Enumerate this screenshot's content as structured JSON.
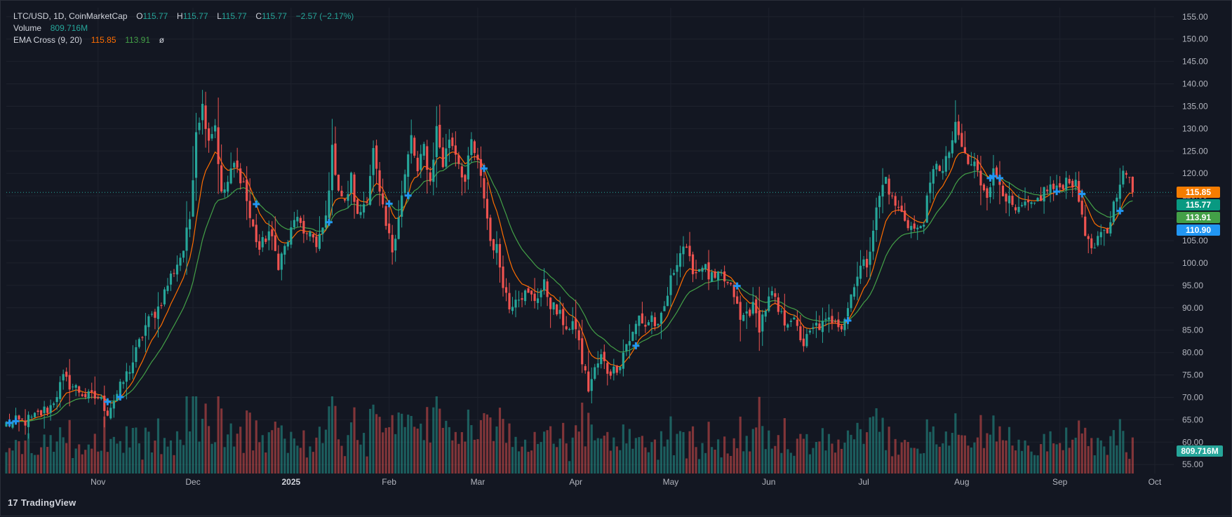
{
  "legend": {
    "symbol_line": "LTC/USD, 1D, CoinMarketCap",
    "o_key": "O",
    "o_val": "115.77",
    "h_key": "H",
    "h_val": "115.77",
    "l_key": "L",
    "l_val": "115.77",
    "c_key": "C",
    "c_val": "115.77",
    "change": "−2.57 (−2.17%)",
    "volume_label": "Volume",
    "volume_val": "809.716M",
    "ema_label": "EMA Cross (9, 20)",
    "ema9_val": "115.85",
    "ema20_val": "113.91",
    "ema_extra": "ø"
  },
  "price_tags": [
    {
      "label": "115.85",
      "value": 115.85,
      "color": "#f57c00"
    },
    {
      "label": "115.77",
      "value": 115.77,
      "color": "#089981"
    },
    {
      "label": "113.91",
      "value": 113.91,
      "color": "#43a047"
    },
    {
      "label": "110.90",
      "value": 110.9,
      "color": "#2196f3"
    }
  ],
  "volume_tag": {
    "label": "809.716M",
    "color": "#26a69a"
  },
  "branding": {
    "logo_mark": "17",
    "logo_text": "TradingView"
  },
  "colors": {
    "up": "#26a69a",
    "down": "#ef5350",
    "ema9": "#ff6d00",
    "ema20": "#43a047",
    "cross": "#2196f3",
    "last_price_line": "#26a69a"
  },
  "chart_data": {
    "type": "candlestick",
    "symbol": "LTC/USD",
    "interval": "1D",
    "ylim": [
      53,
      157
    ],
    "yticks": [
      55,
      60,
      65,
      70,
      75,
      80,
      85,
      90,
      95,
      100,
      105,
      110,
      115,
      120,
      125,
      130,
      135,
      140,
      145,
      150,
      155
    ],
    "ytick_labels": [
      "55.00",
      "60.00",
      "65.00",
      "70.00",
      "75.00",
      "80.00",
      "85.00",
      "90.00",
      "95.00",
      "100.00",
      "105.00",
      "110.00",
      "115.00",
      "120.00",
      "125.00",
      "130.00",
      "135.00",
      "140.00",
      "145.00",
      "150.00",
      "155.00"
    ],
    "x_range_days": [
      0,
      369
    ],
    "xticks": [
      {
        "label": "Nov",
        "day": 29,
        "bold": false
      },
      {
        "label": "Dec",
        "day": 59,
        "bold": false
      },
      {
        "label": "2025",
        "day": 90,
        "bold": true
      },
      {
        "label": "Feb",
        "day": 121,
        "bold": false
      },
      {
        "label": "Mar",
        "day": 149,
        "bold": false
      },
      {
        "label": "Apr",
        "day": 180,
        "bold": false
      },
      {
        "label": "May",
        "day": 210,
        "bold": false
      },
      {
        "label": "Jun",
        "day": 241,
        "bold": false
      },
      {
        "label": "Jul",
        "day": 271,
        "bold": false
      },
      {
        "label": "Aug",
        "day": 302,
        "bold": false
      },
      {
        "label": "Sep",
        "day": 333,
        "bold": false
      },
      {
        "label": "Oct",
        "day": 363,
        "bold": false
      }
    ],
    "close_keypoints": [
      [
        0,
        64
      ],
      [
        8,
        65
      ],
      [
        14,
        68
      ],
      [
        18,
        74
      ],
      [
        22,
        72
      ],
      [
        26,
        70
      ],
      [
        29,
        70
      ],
      [
        32,
        67
      ],
      [
        36,
        72
      ],
      [
        40,
        78
      ],
      [
        44,
        86
      ],
      [
        48,
        90
      ],
      [
        52,
        97
      ],
      [
        56,
        103
      ],
      [
        58,
        110
      ],
      [
        60,
        130
      ],
      [
        62,
        135
      ],
      [
        64,
        128
      ],
      [
        66,
        131
      ],
      [
        68,
        115
      ],
      [
        70,
        118
      ],
      [
        72,
        122
      ],
      [
        75,
        118
      ],
      [
        77,
        110
      ],
      [
        80,
        103
      ],
      [
        83,
        107
      ],
      [
        86,
        100
      ],
      [
        89,
        105
      ],
      [
        92,
        111
      ],
      [
        94,
        105
      ],
      [
        96,
        108
      ],
      [
        98,
        103
      ],
      [
        101,
        110
      ],
      [
        103,
        125
      ],
      [
        105,
        117
      ],
      [
        107,
        113
      ],
      [
        109,
        119
      ],
      [
        111,
        110
      ],
      [
        114,
        115
      ],
      [
        116,
        125
      ],
      [
        118,
        115
      ],
      [
        120,
        108
      ],
      [
        122,
        103
      ],
      [
        125,
        115
      ],
      [
        128,
        128
      ],
      [
        130,
        120
      ],
      [
        132,
        126
      ],
      [
        134,
        118
      ],
      [
        136,
        130
      ],
      [
        138,
        122
      ],
      [
        140,
        128
      ],
      [
        142,
        125
      ],
      [
        145,
        118
      ],
      [
        147,
        127
      ],
      [
        149,
        122
      ],
      [
        151,
        115
      ],
      [
        153,
        105
      ],
      [
        155,
        103
      ],
      [
        157,
        96
      ],
      [
        159,
        90
      ],
      [
        161,
        93
      ],
      [
        164,
        93
      ],
      [
        167,
        92
      ],
      [
        170,
        95
      ],
      [
        172,
        91
      ],
      [
        175,
        88
      ],
      [
        178,
        85
      ],
      [
        180,
        86
      ],
      [
        182,
        78
      ],
      [
        184,
        72
      ],
      [
        186,
        76
      ],
      [
        188,
        79
      ],
      [
        190,
        76
      ],
      [
        192,
        76
      ],
      [
        194,
        78
      ],
      [
        196,
        82
      ],
      [
        198,
        84
      ],
      [
        200,
        88
      ],
      [
        202,
        86
      ],
      [
        204,
        88
      ],
      [
        206,
        85
      ],
      [
        208,
        90
      ],
      [
        210,
        96
      ],
      [
        212,
        101
      ],
      [
        214,
        104
      ],
      [
        216,
        100
      ],
      [
        218,
        98
      ],
      [
        220,
        100
      ],
      [
        222,
        97
      ],
      [
        224,
        96
      ],
      [
        226,
        97
      ],
      [
        228,
        95
      ],
      [
        230,
        93
      ],
      [
        232,
        87
      ],
      [
        234,
        89
      ],
      [
        236,
        90
      ],
      [
        238,
        86
      ],
      [
        240,
        90
      ],
      [
        242,
        93
      ],
      [
        244,
        89
      ],
      [
        246,
        87
      ],
      [
        248,
        88
      ],
      [
        250,
        85
      ],
      [
        252,
        82
      ],
      [
        254,
        84
      ],
      [
        256,
        86
      ],
      [
        258,
        86
      ],
      [
        260,
        87
      ],
      [
        262,
        88
      ],
      [
        264,
        86
      ],
      [
        266,
        90
      ],
      [
        268,
        96
      ],
      [
        270,
        99
      ],
      [
        272,
        100
      ],
      [
        274,
        108
      ],
      [
        276,
        115
      ],
      [
        278,
        119
      ],
      [
        280,
        114
      ],
      [
        282,
        112
      ],
      [
        284,
        110
      ],
      [
        286,
        108
      ],
      [
        288,
        107
      ],
      [
        290,
        110
      ],
      [
        292,
        117
      ],
      [
        294,
        123
      ],
      [
        296,
        120
      ],
      [
        298,
        125
      ],
      [
        300,
        130
      ],
      [
        302,
        126
      ],
      [
        304,
        122
      ],
      [
        306,
        122
      ],
      [
        308,
        118
      ],
      [
        310,
        116
      ],
      [
        312,
        120
      ],
      [
        314,
        118
      ],
      [
        316,
        115
      ],
      [
        318,
        112
      ],
      [
        320,
        111
      ],
      [
        322,
        113
      ],
      [
        324,
        112
      ],
      [
        326,
        114
      ],
      [
        328,
        116
      ],
      [
        330,
        117
      ],
      [
        332,
        116
      ],
      [
        334,
        118
      ],
      [
        336,
        119
      ],
      [
        338,
        117
      ],
      [
        340,
        111
      ],
      [
        342,
        104
      ],
      [
        344,
        103
      ],
      [
        346,
        106
      ],
      [
        348,
        107
      ],
      [
        350,
        113
      ],
      [
        352,
        119
      ],
      [
        354,
        120
      ],
      [
        356,
        116
      ]
    ],
    "ema9_last": 115.85,
    "ema20_last": 113.91,
    "last_price": 115.77,
    "volume_last": "809.716M",
    "volume_last_value": 809716000
  }
}
